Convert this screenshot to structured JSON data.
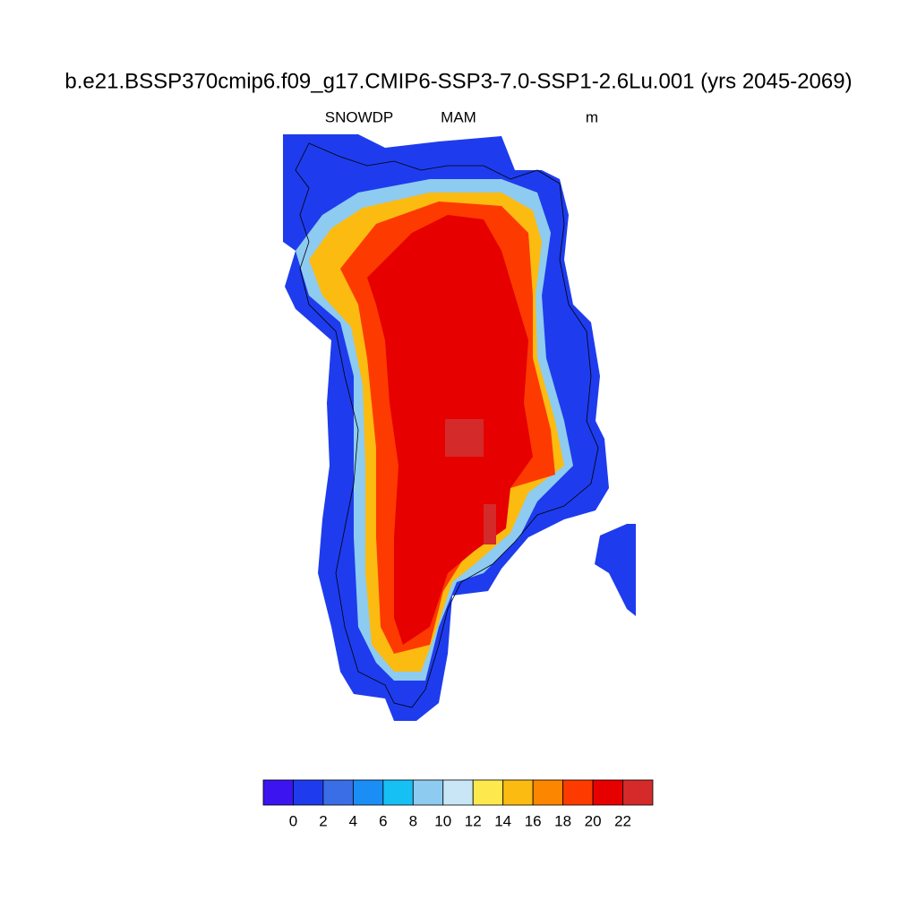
{
  "title": "b.e21.BSSP370cmip6.f09_g17.CMIP6-SSP3-7.0-SSP1-2.6Lu.001 (yrs 2045-2069)",
  "left_string": "SNOWDP",
  "center_string": "MAM",
  "right_string": "m",
  "colorbar": {
    "colors": [
      "#3c14f0",
      "#1e3ced",
      "#3a6ee6",
      "#1a8ef5",
      "#16c0f5",
      "#8ecbf0",
      "#c8e6f6",
      "#fde84e",
      "#fbbb10",
      "#fd8600",
      "#fd3a00",
      "#e60000",
      "#d42a2a"
    ],
    "labels": [
      0,
      2,
      4,
      6,
      8,
      10,
      12,
      14,
      16,
      18,
      20,
      22
    ]
  }
}
